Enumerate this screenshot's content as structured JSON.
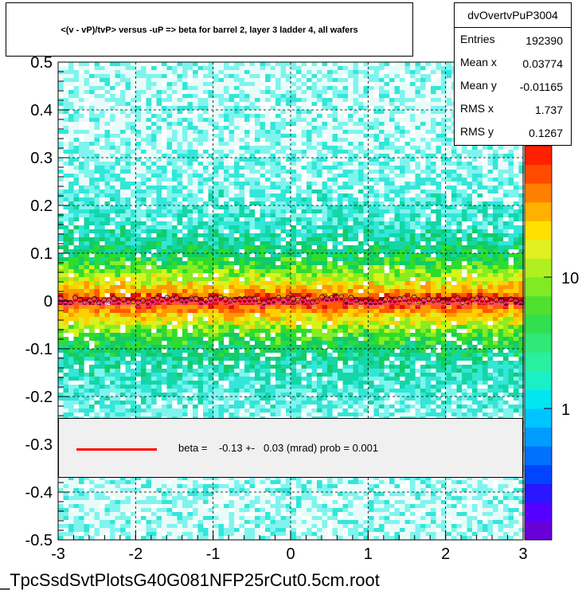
{
  "chart_data": {
    "type": "heatmap",
    "title": "<(v - vP)/tvP> versus  -uP => beta for barrel 2, layer 3 ladder 4, all wafers",
    "xlabel": "",
    "ylabel": "",
    "xlim": [
      -3,
      3
    ],
    "ylim": [
      -0.5,
      0.5
    ],
    "x_ticks": [
      "-3",
      "-2",
      "-1",
      "0",
      "1",
      "2",
      "3"
    ],
    "y_ticks": [
      "-0.5",
      "-0.4",
      "-0.3",
      "-0.2",
      "-0.1",
      "0",
      "0.1",
      "0.2",
      "0.3",
      "0.4",
      "0.5"
    ],
    "z_scale": "log",
    "z_ticks": [
      "1",
      "10"
    ],
    "grid": true,
    "profile_y": 0.0,
    "fit_line_y": -0.00013
  },
  "stats": {
    "name": "dvOvertvPuP3004",
    "rows": [
      {
        "label": "Entries",
        "value": "192390"
      },
      {
        "label": "Mean x",
        "value": "0.03774"
      },
      {
        "label": "Mean y",
        "value": "-0.01165"
      },
      {
        "label": "RMS x",
        "value": "1.737"
      },
      {
        "label": "RMS y",
        "value": "0.1267"
      }
    ]
  },
  "fit": {
    "text": "beta =    -0.13 +-   0.03 (mrad) prob = 0.001",
    "line_color": "#ff0000"
  },
  "footer": "_TpcSsdSvtPlotsG40G081NFP25rCut0.5cm.root"
}
